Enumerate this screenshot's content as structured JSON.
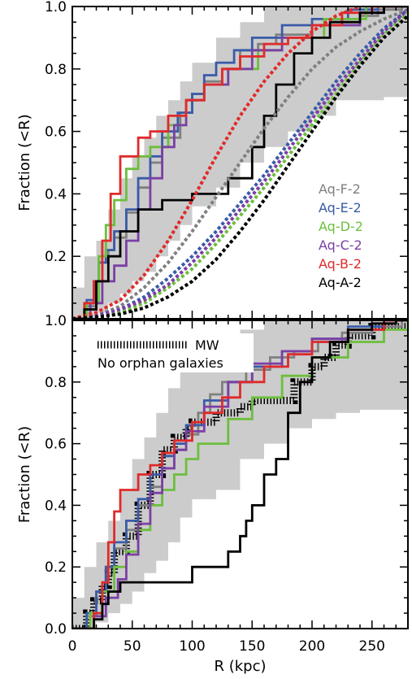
{
  "chart_data": [
    {
      "type": "line",
      "panel": "top",
      "xlabel": "",
      "ylabel": "Fraction (<R)",
      "xlim": [
        0,
        280
      ],
      "ylim": [
        0,
        1.0
      ],
      "x_ticks": [
        0,
        50,
        100,
        150,
        200,
        250
      ],
      "y_ticks": [
        0.2,
        0.4,
        0.6,
        0.8,
        1.0
      ],
      "y_tick_labels": [
        "0.2",
        "0.4",
        "0.6",
        "0.8",
        "1.0"
      ],
      "shaded_band": {
        "color": "#cccccc",
        "x": [
          0,
          10,
          20,
          30,
          40,
          50,
          60,
          70,
          80,
          90,
          100,
          120,
          140,
          160,
          180,
          200,
          220,
          240,
          260,
          280
        ],
        "lower": [
          0,
          0,
          0.02,
          0.05,
          0.08,
          0.12,
          0.15,
          0.2,
          0.25,
          0.3,
          0.36,
          0.42,
          0.5,
          0.55,
          0.6,
          0.65,
          0.7,
          0.7,
          0.71,
          0.71
        ],
        "upper": [
          0.1,
          0.2,
          0.25,
          0.35,
          0.45,
          0.52,
          0.58,
          0.65,
          0.7,
          0.76,
          0.82,
          0.9,
          0.95,
          1.0,
          1.0,
          1.0,
          1.0,
          1.0,
          1.0,
          1.0
        ]
      },
      "legend": {
        "placement": "right-center"
      },
      "series": [
        {
          "name": "Aq-F-2",
          "color": "#808080",
          "style": "step",
          "x": [
            0,
            12,
            20,
            25,
            30,
            35,
            45,
            55,
            65,
            75,
            90,
            100,
            110,
            125,
            140,
            155,
            170,
            200,
            240,
            255,
            275
          ],
          "y": [
            0,
            0.04,
            0.12,
            0.18,
            0.22,
            0.26,
            0.34,
            0.42,
            0.5,
            0.58,
            0.66,
            0.72,
            0.76,
            0.8,
            0.86,
            0.88,
            0.91,
            0.94,
            0.97,
            0.99,
            1.0
          ]
        },
        {
          "name": "Aq-E-2",
          "color": "#3a5ba8",
          "style": "step",
          "x": [
            0,
            12,
            18,
            22,
            28,
            35,
            45,
            55,
            65,
            75,
            88,
            100,
            110,
            120,
            135,
            150,
            175,
            200,
            230,
            255
          ],
          "y": [
            0,
            0.06,
            0.12,
            0.18,
            0.22,
            0.28,
            0.35,
            0.45,
            0.52,
            0.6,
            0.66,
            0.72,
            0.78,
            0.82,
            0.86,
            0.9,
            0.94,
            0.96,
            0.99,
            1.0
          ]
        },
        {
          "name": "Aq-D-2",
          "color": "#6cbf3d",
          "style": "step",
          "x": [
            0,
            12,
            22,
            28,
            35,
            45,
            55,
            65,
            80,
            95,
            110,
            130,
            155,
            175,
            210,
            245
          ],
          "y": [
            0,
            0.05,
            0.2,
            0.3,
            0.38,
            0.48,
            0.52,
            0.55,
            0.62,
            0.7,
            0.75,
            0.8,
            0.86,
            0.9,
            0.96,
            1.0
          ]
        },
        {
          "name": "Aq-C-2",
          "color": "#7b3fa5",
          "style": "step",
          "x": [
            0,
            15,
            25,
            35,
            45,
            55,
            65,
            75,
            85,
            95,
            110,
            130,
            150,
            175,
            200,
            240,
            260
          ],
          "y": [
            0,
            0.05,
            0.12,
            0.17,
            0.25,
            0.35,
            0.45,
            0.55,
            0.62,
            0.7,
            0.75,
            0.8,
            0.86,
            0.9,
            0.94,
            0.98,
            1.0
          ]
        },
        {
          "name": "Aq-B-2",
          "color": "#e02a2a",
          "style": "step",
          "x": [
            0,
            10,
            18,
            25,
            32,
            40,
            55,
            65,
            80,
            95,
            110,
            125,
            140,
            160,
            180,
            200,
            225,
            250
          ],
          "y": [
            0,
            0.05,
            0.12,
            0.25,
            0.4,
            0.52,
            0.58,
            0.6,
            0.65,
            0.7,
            0.75,
            0.8,
            0.84,
            0.88,
            0.9,
            0.94,
            0.98,
            1.0
          ]
        },
        {
          "name": "Aq-A-2",
          "color": "#000000",
          "style": "step",
          "x": [
            0,
            10,
            20,
            30,
            40,
            55,
            75,
            100,
            130,
            150,
            160,
            170,
            185,
            200,
            215,
            240,
            260
          ],
          "y": [
            0,
            0.03,
            0.12,
            0.2,
            0.28,
            0.35,
            0.38,
            0.4,
            0.45,
            0.55,
            0.65,
            0.75,
            0.85,
            0.9,
            0.95,
            0.98,
            1.0
          ]
        },
        {
          "name": "",
          "color": "#808080",
          "style": "dashed",
          "x": [
            0,
            20,
            40,
            60,
            80,
            100,
            120,
            140,
            160,
            180,
            200,
            220,
            240,
            260,
            280
          ],
          "y": [
            0,
            0.01,
            0.04,
            0.1,
            0.18,
            0.28,
            0.39,
            0.5,
            0.61,
            0.71,
            0.8,
            0.87,
            0.92,
            0.96,
            0.99
          ]
        },
        {
          "name": "",
          "color": "#3a5ba8",
          "style": "dashed",
          "x": [
            0,
            20,
            40,
            60,
            80,
            100,
            120,
            140,
            160,
            180,
            200,
            220,
            240,
            260,
            280
          ],
          "y": [
            0,
            0.01,
            0.03,
            0.07,
            0.13,
            0.2,
            0.28,
            0.37,
            0.46,
            0.56,
            0.66,
            0.76,
            0.85,
            0.93,
            0.99
          ]
        },
        {
          "name": "",
          "color": "#6cbf3d",
          "style": "dashed",
          "x": [
            0,
            20,
            40,
            60,
            80,
            100,
            120,
            140,
            160,
            180,
            200,
            220,
            240,
            260,
            280
          ],
          "y": [
            0,
            0.01,
            0.02,
            0.05,
            0.1,
            0.16,
            0.24,
            0.33,
            0.42,
            0.52,
            0.62,
            0.72,
            0.82,
            0.91,
            0.98
          ]
        },
        {
          "name": "",
          "color": "#7b3fa5",
          "style": "dashed",
          "x": [
            0,
            20,
            40,
            60,
            80,
            100,
            120,
            140,
            160,
            180,
            200,
            220,
            240,
            260,
            280
          ],
          "y": [
            0,
            0.01,
            0.03,
            0.06,
            0.11,
            0.18,
            0.26,
            0.35,
            0.44,
            0.54,
            0.64,
            0.74,
            0.83,
            0.92,
            0.99
          ]
        },
        {
          "name": "",
          "color": "#e02a2a",
          "style": "dashed",
          "x": [
            0,
            20,
            40,
            60,
            80,
            100,
            120,
            140,
            160,
            180,
            200,
            220,
            240
          ],
          "y": [
            0,
            0.02,
            0.06,
            0.14,
            0.25,
            0.38,
            0.52,
            0.65,
            0.76,
            0.85,
            0.92,
            0.97,
            1.0
          ]
        },
        {
          "name": "",
          "color": "#000000",
          "style": "dashed",
          "x": [
            0,
            20,
            40,
            60,
            80,
            100,
            120,
            140,
            160,
            180,
            200,
            220,
            240,
            260,
            280
          ],
          "y": [
            0,
            0.005,
            0.015,
            0.035,
            0.07,
            0.12,
            0.19,
            0.28,
            0.38,
            0.49,
            0.6,
            0.71,
            0.81,
            0.9,
            0.97
          ]
        }
      ]
    },
    {
      "type": "line",
      "panel": "bottom",
      "xlabel": "R (kpc)",
      "ylabel": "Fraction (<R)",
      "xlim": [
        0,
        280
      ],
      "ylim": [
        0,
        1.0
      ],
      "x_ticks": [
        0,
        50,
        100,
        150,
        200,
        250
      ],
      "x_tick_labels": [
        "0",
        "50",
        "100",
        "150",
        "200",
        "250"
      ],
      "y_ticks": [
        0.0,
        0.2,
        0.4,
        0.6,
        0.8,
        1.0
      ],
      "y_tick_labels": [
        "0.0",
        "0.2",
        "0.4",
        "0.6",
        "0.8",
        "1.0"
      ],
      "annotations": [
        {
          "text": "MW",
          "legend_style": "hatched-step",
          "color": "#000000"
        },
        {
          "text": "No orphan galaxies",
          "color": "#000000"
        }
      ],
      "shaded_band": {
        "color": "#cccccc",
        "x": [
          0,
          10,
          20,
          30,
          40,
          50,
          60,
          70,
          80,
          90,
          100,
          120,
          140,
          160,
          180,
          200,
          220,
          240,
          260,
          280
        ],
        "lower": [
          0,
          0,
          0.02,
          0.05,
          0.08,
          0.12,
          0.18,
          0.22,
          0.28,
          0.36,
          0.42,
          0.45,
          0.55,
          0.6,
          0.65,
          0.68,
          0.7,
          0.71,
          0.71,
          0.71
        ],
        "upper": [
          0.1,
          0.2,
          0.28,
          0.35,
          0.45,
          0.55,
          0.62,
          0.7,
          0.78,
          0.85,
          0.88,
          0.93,
          0.97,
          1.0,
          1.0,
          1.0,
          1.0,
          1.0,
          1.0,
          1.0
        ]
      },
      "series": [
        {
          "name": "MW",
          "color": "#000000",
          "style": "hatched",
          "x": [
            0,
            12,
            18,
            25,
            30,
            35,
            45,
            55,
            65,
            75,
            85,
            95,
            100,
            120,
            140,
            150,
            185,
            200,
            210,
            220,
            230,
            250
          ],
          "y": [
            0,
            0.05,
            0.09,
            0.14,
            0.18,
            0.25,
            0.3,
            0.4,
            0.5,
            0.58,
            0.62,
            0.65,
            0.67,
            0.7,
            0.72,
            0.74,
            0.8,
            0.85,
            0.88,
            0.92,
            0.95,
            0.98
          ]
        },
        {
          "name": "",
          "color": "#808080",
          "style": "step",
          "x": [
            0,
            12,
            20,
            28,
            35,
            45,
            55,
            65,
            75,
            85,
            95,
            105,
            115,
            125,
            145,
            165,
            185,
            205,
            225,
            250,
            275
          ],
          "y": [
            0,
            0.04,
            0.12,
            0.2,
            0.26,
            0.32,
            0.4,
            0.46,
            0.52,
            0.58,
            0.63,
            0.7,
            0.76,
            0.8,
            0.84,
            0.88,
            0.9,
            0.93,
            0.96,
            0.98,
            1.0
          ]
        },
        {
          "name": "",
          "color": "#3a5ba8",
          "style": "step",
          "x": [
            0,
            12,
            20,
            28,
            35,
            45,
            55,
            65,
            75,
            85,
            95,
            110,
            130,
            150,
            175,
            200,
            230,
            260
          ],
          "y": [
            0,
            0.05,
            0.12,
            0.2,
            0.28,
            0.35,
            0.42,
            0.5,
            0.56,
            0.6,
            0.66,
            0.74,
            0.8,
            0.85,
            0.9,
            0.94,
            0.98,
            1.0
          ]
        },
        {
          "name": "",
          "color": "#6cbf3d",
          "style": "step",
          "x": [
            0,
            15,
            25,
            35,
            45,
            55,
            65,
            75,
            85,
            95,
            105,
            130,
            150,
            175,
            200,
            230,
            260,
            280
          ],
          "y": [
            0,
            0.05,
            0.12,
            0.2,
            0.25,
            0.32,
            0.4,
            0.45,
            0.5,
            0.55,
            0.6,
            0.68,
            0.75,
            0.82,
            0.88,
            0.93,
            0.97,
            1.0
          ]
        },
        {
          "name": "",
          "color": "#7b3fa5",
          "style": "step",
          "x": [
            0,
            18,
            28,
            38,
            45,
            55,
            65,
            75,
            85,
            95,
            110,
            130,
            150,
            175,
            200,
            230,
            260
          ],
          "y": [
            0,
            0.04,
            0.1,
            0.16,
            0.24,
            0.34,
            0.44,
            0.52,
            0.58,
            0.64,
            0.72,
            0.8,
            0.86,
            0.9,
            0.94,
            0.97,
            1.0
          ]
        },
        {
          "name": "",
          "color": "#e02a2a",
          "style": "step",
          "x": [
            0,
            18,
            25,
            30,
            35,
            40,
            55,
            65,
            75,
            85,
            100,
            110,
            125,
            140,
            160,
            180,
            200,
            230,
            260
          ],
          "y": [
            0,
            0.05,
            0.15,
            0.28,
            0.38,
            0.45,
            0.5,
            0.53,
            0.57,
            0.61,
            0.67,
            0.7,
            0.75,
            0.8,
            0.85,
            0.89,
            0.93,
            0.97,
            1.0
          ]
        },
        {
          "name": "",
          "color": "#000000",
          "style": "step",
          "x": [
            0,
            18,
            25,
            30,
            40,
            50,
            80,
            100,
            130,
            140,
            145,
            150,
            160,
            170,
            180,
            190,
            200,
            215,
            230,
            250,
            270
          ],
          "y": [
            0,
            0.03,
            0.08,
            0.12,
            0.15,
            0.15,
            0.15,
            0.2,
            0.25,
            0.3,
            0.35,
            0.4,
            0.5,
            0.55,
            0.7,
            0.8,
            0.88,
            0.93,
            0.97,
            0.99,
            1.0
          ]
        }
      ]
    }
  ],
  "colors": {
    "band": "#cccccc",
    "gray": "#808080",
    "blue": "#3a5ba8",
    "green": "#6cbf3d",
    "purple": "#7b3fa5",
    "red": "#e02a2a",
    "black": "#000000"
  }
}
